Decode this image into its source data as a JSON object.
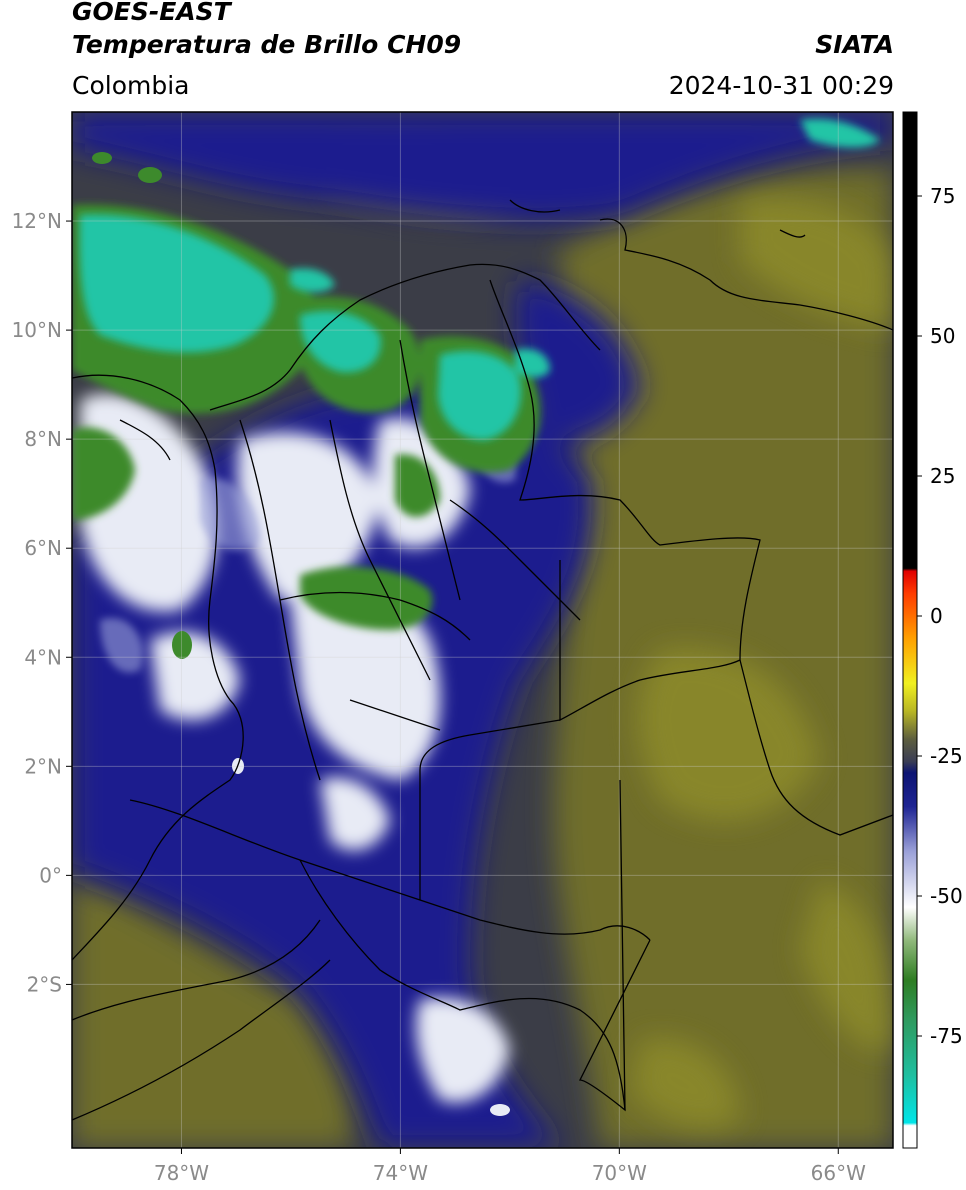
{
  "header": {
    "satellite": "GOES-EAST",
    "product": "Temperatura de Brillo CH09",
    "brand": "SIATA",
    "region": "Colombia",
    "timestamp": "2024-10-31 00:29"
  },
  "map": {
    "extent": {
      "lon": [
        -80,
        -65
      ],
      "lat": [
        -5,
        14
      ]
    },
    "lat_ticks": [
      {
        "value": 12,
        "label": "12°N"
      },
      {
        "value": 10,
        "label": "10°N"
      },
      {
        "value": 8,
        "label": "8°N"
      },
      {
        "value": 6,
        "label": "6°N"
      },
      {
        "value": 4,
        "label": "4°N"
      },
      {
        "value": 2,
        "label": "2°N"
      },
      {
        "value": 0,
        "label": "0°"
      },
      {
        "value": -2,
        "label": "2°S"
      }
    ],
    "lon_ticks": [
      {
        "value": -78,
        "label": "78°W"
      },
      {
        "value": -74,
        "label": "74°W"
      },
      {
        "value": -70,
        "label": "70°W"
      },
      {
        "value": -66,
        "label": "66°W"
      }
    ],
    "colors": {
      "background": "#3b3d47",
      "olive": "#6f6e2a",
      "navy": "#1b1f8e",
      "cold_white": "#e8ebf5",
      "green": "#3d8a2c",
      "cyan": "#22c5a6"
    }
  },
  "colorbar": {
    "range": [
      -95,
      90
    ],
    "ticks": [
      {
        "value": 75,
        "label": "75"
      },
      {
        "value": 50,
        "label": "50"
      },
      {
        "value": 25,
        "label": "25"
      },
      {
        "value": 0,
        "label": "0"
      },
      {
        "value": -25,
        "label": "-25"
      },
      {
        "value": -50,
        "label": "-50"
      },
      {
        "value": -75,
        "label": "-75"
      }
    ],
    "stops": [
      {
        "value": -95,
        "color": "#ffffff"
      },
      {
        "value": -91,
        "color": "#ffffff"
      },
      {
        "value": -90.5,
        "color": "#00e5e8"
      },
      {
        "value": -82,
        "color": "#1fbfa0"
      },
      {
        "value": -72,
        "color": "#2f9a5e"
      },
      {
        "value": -65,
        "color": "#2e7d22"
      },
      {
        "value": -58,
        "color": "#8fb87a"
      },
      {
        "value": -52,
        "color": "#ffffff"
      },
      {
        "value": -42,
        "color": "#9aa0d8"
      },
      {
        "value": -34,
        "color": "#1e2493"
      },
      {
        "value": -28,
        "color": "#0c1473"
      },
      {
        "value": -26,
        "color": "#3a3d55"
      },
      {
        "value": -22,
        "color": "#5d5e3e"
      },
      {
        "value": -17,
        "color": "#b8b624"
      },
      {
        "value": -12,
        "color": "#f0f020"
      },
      {
        "value": -4,
        "color": "#ffa000"
      },
      {
        "value": 4,
        "color": "#ff3c00"
      },
      {
        "value": 8,
        "color": "#e00000"
      },
      {
        "value": 8.5,
        "color": "#000000"
      },
      {
        "value": 90,
        "color": "#000000"
      }
    ]
  }
}
